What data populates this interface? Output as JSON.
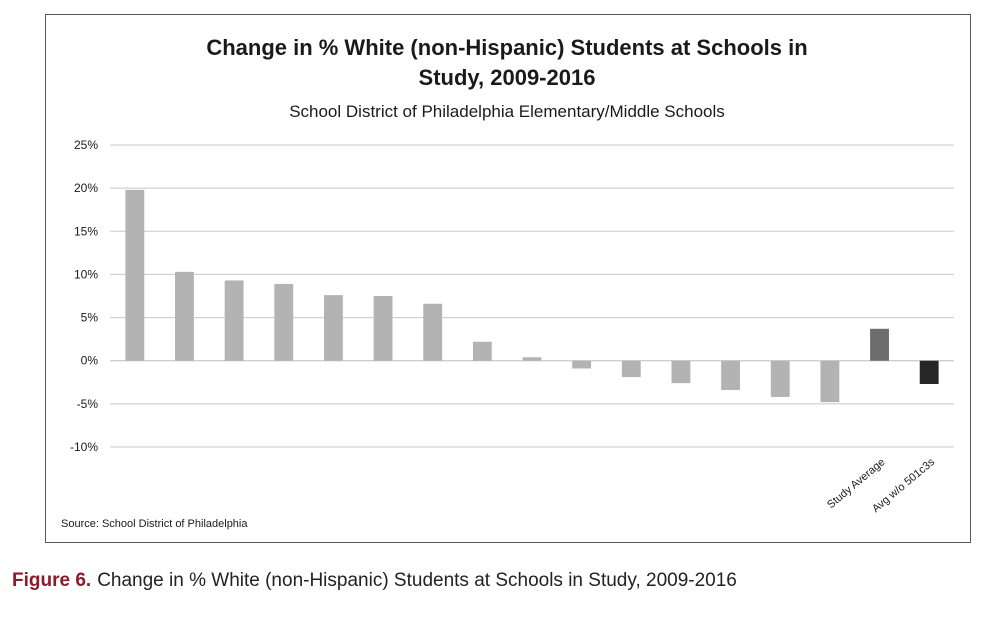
{
  "caption": {
    "label": "Figure 6.",
    "text": "Change in % White (non-Hispanic) Students at Schools in Study, 2009-2016",
    "label_color": "#8b1a2b"
  },
  "chart_data": {
    "type": "bar",
    "title_line1": "Change in % White (non-Hispanic) Students at Schools in",
    "title_line2": "Study, 2009-2016",
    "subtitle": "School District of Philadelphia Elementary/Middle Schools",
    "source": "Source: School District of Philadelphia",
    "xlabel": "",
    "ylabel": "",
    "ylim": [
      -10,
      25
    ],
    "yticks": [
      25,
      20,
      15,
      10,
      5,
      0,
      -5,
      -10
    ],
    "ytick_labels": [
      "25%",
      "20%",
      "15%",
      "10%",
      "5%",
      "0%",
      "-5%",
      "-10%"
    ],
    "grid": true,
    "categories": [
      "",
      "",
      "",
      "",
      "",
      "",
      "",
      "",
      "",
      "",
      "",
      "",
      "",
      "",
      "",
      "Study Average",
      "Avg w/o 501c3s"
    ],
    "values": [
      19.8,
      10.3,
      9.3,
      8.9,
      7.6,
      7.5,
      6.6,
      2.2,
      0.4,
      -0.9,
      -1.9,
      -2.6,
      -3.4,
      -4.2,
      -4.8,
      3.7,
      -2.7
    ],
    "colors": [
      "#b3b3b3",
      "#b3b3b3",
      "#b3b3b3",
      "#b3b3b3",
      "#b3b3b3",
      "#b3b3b3",
      "#b3b3b3",
      "#b3b3b3",
      "#b3b3b3",
      "#b3b3b3",
      "#b3b3b3",
      "#b3b3b3",
      "#b3b3b3",
      "#b3b3b3",
      "#b3b3b3",
      "#6d6d6d",
      "#262626"
    ]
  }
}
